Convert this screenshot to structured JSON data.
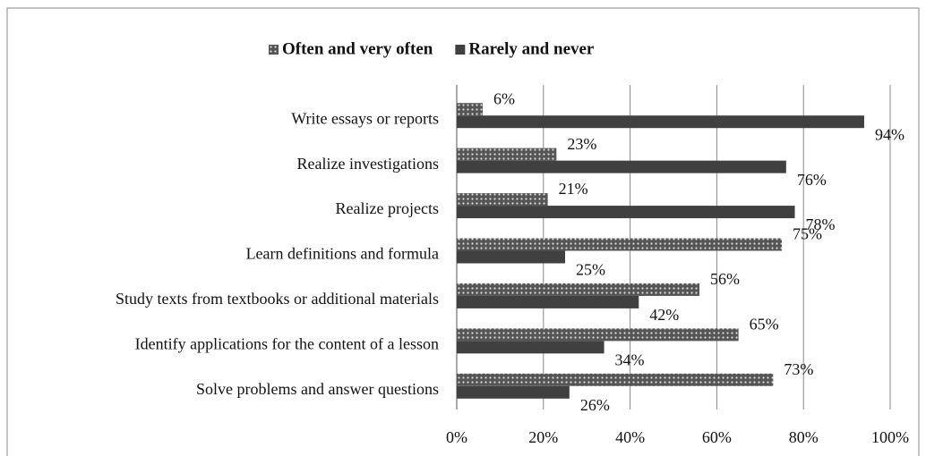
{
  "chart_data": {
    "type": "bar",
    "orientation": "horizontal",
    "categories": [
      "Write essays or reports",
      "Realize investigations",
      "Realize projects",
      "Learn definitions and formula",
      "Study texts from textbooks or additional materials",
      "Identify applications for the content of a lesson",
      "Solve problems and answer questions"
    ],
    "series": [
      {
        "name": "Often and very often",
        "color": "#555555",
        "pattern": "dots",
        "values": [
          6,
          23,
          21,
          75,
          56,
          65,
          73
        ],
        "value_labels": [
          "6%",
          "23%",
          "21%",
          "75%",
          "56%",
          "65%",
          "73%"
        ]
      },
      {
        "name": "Rarely and never",
        "color": "#404040",
        "values": [
          94,
          76,
          78,
          25,
          42,
          34,
          26
        ],
        "value_labels": [
          "94%",
          "76%",
          "78%",
          "25%",
          "42%",
          "34%",
          "26%"
        ]
      }
    ],
    "xlim": [
      0,
      100
    ],
    "xticks": [
      {
        "value": 0,
        "label": "0%"
      },
      {
        "value": 20,
        "label": "20%"
      },
      {
        "value": 40,
        "label": "40%"
      },
      {
        "value": 60,
        "label": "60%"
      },
      {
        "value": 80,
        "label": "80%"
      },
      {
        "value": 100,
        "label": "100%"
      }
    ],
    "grid": true,
    "legend": "top"
  }
}
